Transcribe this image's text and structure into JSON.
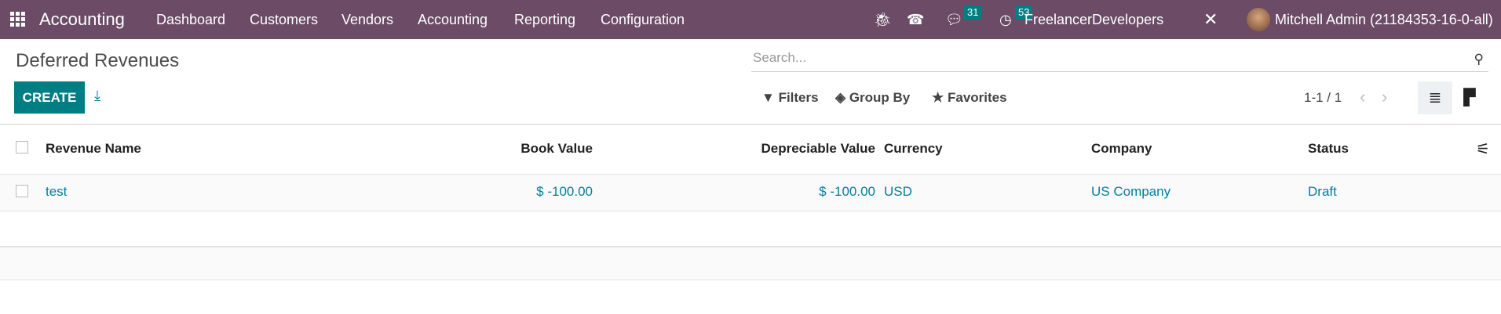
{
  "navbar": {
    "app_name": "Accounting",
    "menu": [
      "Dashboard",
      "Customers",
      "Vendors",
      "Accounting",
      "Reporting",
      "Configuration"
    ],
    "messages_count": "31",
    "activities_count": "53",
    "company": "FreelancerDevelopers",
    "user": "Mitchell Admin (21184353-16-0-all)"
  },
  "page": {
    "title": "Deferred Revenues",
    "create_label": "CREATE",
    "search_placeholder": "Search...",
    "filters": "Filters",
    "group_by": "Group By",
    "favorites": "Favorites",
    "pager": "1-1 / 1"
  },
  "table": {
    "columns": [
      "Revenue Name",
      "Book Value",
      "Depreciable Value",
      "Currency",
      "Company",
      "Status"
    ],
    "rows": [
      [
        "test",
        "$ -100.00",
        "$ -100.00",
        "USD",
        "US Company",
        "Draft"
      ]
    ]
  },
  "colors": {
    "navbar": "#6b4b66",
    "primary": "#017e84",
    "link": "#017e9e"
  }
}
